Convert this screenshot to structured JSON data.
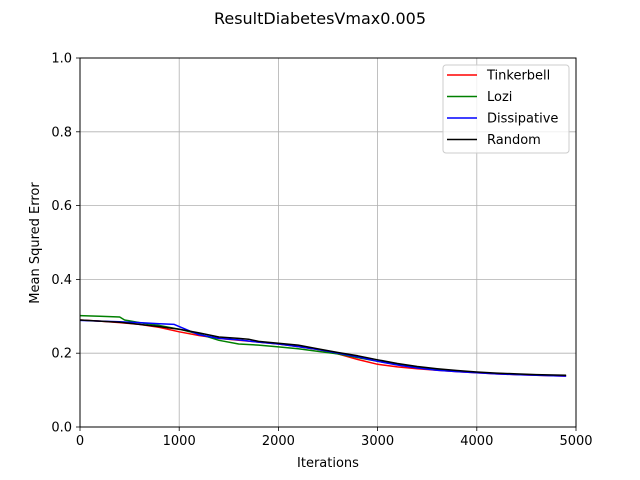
{
  "chart_data": {
    "type": "line",
    "title": "ResultDiabetesVmax0.005",
    "xlabel": "Iterations",
    "ylabel": "Mean Squred Error",
    "xlim": [
      0,
      5000
    ],
    "ylim": [
      0.0,
      1.0
    ],
    "xticks": [
      0,
      1000,
      2000,
      3000,
      4000,
      5000
    ],
    "xtick_labels": [
      "0",
      "1000",
      "2000",
      "3000",
      "4000",
      "5000"
    ],
    "yticks": [
      0.0,
      0.2,
      0.4,
      0.6,
      0.8,
      1.0
    ],
    "ytick_labels": [
      "0.0",
      "0.2",
      "0.4",
      "0.6",
      "0.8",
      "1.0"
    ],
    "grid": true,
    "legend_position": "top-right",
    "series": [
      {
        "name": "Tinkerbell",
        "color": "#ff0000",
        "x": [
          0,
          200,
          400,
          600,
          800,
          1000,
          1200,
          1400,
          1600,
          1800,
          2000,
          2200,
          2400,
          2600,
          2800,
          3000,
          3200,
          3400,
          3600,
          3800,
          4000,
          4200,
          4400,
          4600,
          4900
        ],
        "y": [
          0.29,
          0.287,
          0.283,
          0.278,
          0.27,
          0.258,
          0.248,
          0.24,
          0.235,
          0.23,
          0.225,
          0.218,
          0.21,
          0.198,
          0.183,
          0.17,
          0.163,
          0.158,
          0.154,
          0.15,
          0.147,
          0.144,
          0.142,
          0.14,
          0.138
        ]
      },
      {
        "name": "Lozi",
        "color": "#008000",
        "x": [
          0,
          200,
          400,
          450,
          600,
          800,
          1000,
          1200,
          1400,
          1600,
          1800,
          2000,
          2200,
          2400,
          2600,
          2800,
          3000,
          3200,
          3400,
          3600,
          3800,
          4000,
          4200,
          4400,
          4600,
          4900
        ],
        "y": [
          0.302,
          0.3,
          0.298,
          0.29,
          0.283,
          0.275,
          0.265,
          0.252,
          0.235,
          0.225,
          0.222,
          0.217,
          0.212,
          0.205,
          0.198,
          0.188,
          0.178,
          0.17,
          0.162,
          0.156,
          0.151,
          0.148,
          0.145,
          0.143,
          0.141,
          0.139
        ]
      },
      {
        "name": "Dissipative",
        "color": "#0000ff",
        "x": [
          0,
          200,
          400,
          600,
          800,
          950,
          1000,
          1200,
          1400,
          1600,
          1800,
          2000,
          2200,
          2400,
          2600,
          2800,
          3000,
          3200,
          3400,
          3600,
          3800,
          4000,
          4200,
          4400,
          4600,
          4900
        ],
        "y": [
          0.289,
          0.287,
          0.285,
          0.283,
          0.28,
          0.278,
          0.272,
          0.25,
          0.24,
          0.236,
          0.23,
          0.225,
          0.218,
          0.21,
          0.2,
          0.19,
          0.178,
          0.168,
          0.16,
          0.154,
          0.15,
          0.147,
          0.144,
          0.142,
          0.14,
          0.138
        ]
      },
      {
        "name": "Random",
        "color": "#000000",
        "x": [
          0,
          200,
          400,
          600,
          800,
          1000,
          1200,
          1400,
          1600,
          1700,
          1800,
          2000,
          2200,
          2400,
          2600,
          2800,
          3000,
          3200,
          3400,
          3600,
          3800,
          4000,
          4200,
          4400,
          4600,
          4900
        ],
        "y": [
          0.29,
          0.287,
          0.284,
          0.278,
          0.272,
          0.265,
          0.255,
          0.244,
          0.24,
          0.238,
          0.232,
          0.227,
          0.222,
          0.212,
          0.202,
          0.193,
          0.182,
          0.172,
          0.164,
          0.158,
          0.153,
          0.149,
          0.146,
          0.144,
          0.142,
          0.14
        ]
      }
    ]
  }
}
